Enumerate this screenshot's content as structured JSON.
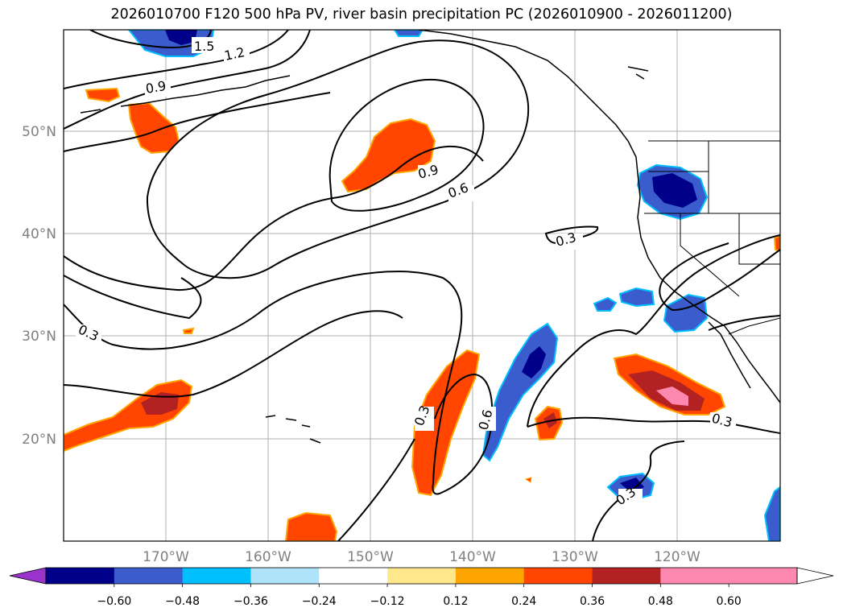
{
  "title": "2026010700 F120 500 hPa PV, river basin precipitation PC (2026010900 - 2026011200)",
  "map": {
    "lat_labels": [
      "50°N",
      "40°N",
      "30°N",
      "20°N"
    ],
    "lon_labels": [
      "170°W",
      "160°W",
      "150°W",
      "140°W",
      "130°W",
      "120°W"
    ],
    "contour_labels": [
      "1.5",
      "1.2",
      "0.9",
      "0.9",
      "0.6",
      "0.3",
      "0.3",
      "0.3",
      "0.6",
      "0.3",
      "0.3"
    ]
  },
  "colorbar": {
    "labels": [
      "−0.60",
      "−0.48",
      "−0.36",
      "−0.24",
      "−0.12",
      "0.12",
      "0.24",
      "0.36",
      "0.48",
      "0.60"
    ],
    "colors": [
      "#9933cc",
      "#00008b",
      "#3a5ccc",
      "#00bfff",
      "#aee3fa",
      "#ffffff",
      "#ffe88c",
      "#ffa500",
      "#ff4500",
      "#b22222",
      "#ff88b0",
      "#ffffff"
    ]
  },
  "colors": {
    "strong_negative": "#00008b",
    "negative": "#3a5ccc",
    "weak_negative": "#00bfff",
    "weak_positive": "#ffa500",
    "positive": "#ff4500",
    "strong_positive": "#b22222",
    "max_positive": "#ff88b0"
  }
}
